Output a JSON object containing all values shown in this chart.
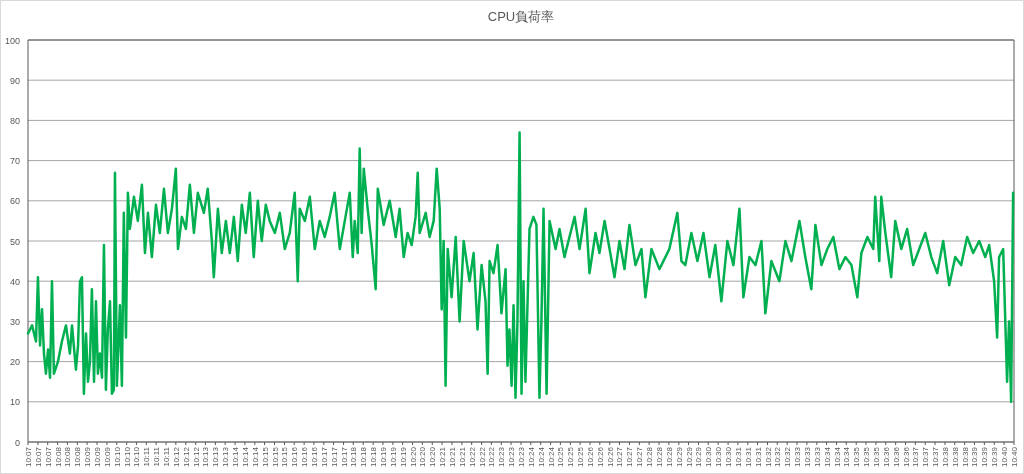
{
  "chart_data": {
    "type": "line",
    "title": "CPU負荷率",
    "grid": "y",
    "xlim": [
      10.1111,
      10.6667
    ],
    "ylim": [
      0,
      100
    ],
    "yticks": [
      0,
      10,
      20,
      30,
      40,
      50,
      60,
      70,
      80,
      90,
      100
    ],
    "xticks": [
      {
        "value": 10.1111,
        "label": "10:07"
      },
      {
        "value": 10.1167,
        "label": "10:07"
      },
      {
        "value": 10.1222,
        "label": "10:07"
      },
      {
        "value": 10.1278,
        "label": "10:08"
      },
      {
        "value": 10.1333,
        "label": "10:08"
      },
      {
        "value": 10.1389,
        "label": "10:08"
      },
      {
        "value": 10.1444,
        "label": "10:09"
      },
      {
        "value": 10.15,
        "label": "10:09"
      },
      {
        "value": 10.1556,
        "label": "10:09"
      },
      {
        "value": 10.1611,
        "label": "10:10"
      },
      {
        "value": 10.1667,
        "label": "10:10"
      },
      {
        "value": 10.1722,
        "label": "10:10"
      },
      {
        "value": 10.1778,
        "label": "10:11"
      },
      {
        "value": 10.1833,
        "label": "10:11"
      },
      {
        "value": 10.1889,
        "label": "10:11"
      },
      {
        "value": 10.1944,
        "label": "10:12"
      },
      {
        "value": 10.2,
        "label": "10:12"
      },
      {
        "value": 10.2056,
        "label": "10:12"
      },
      {
        "value": 10.2111,
        "label": "10:13"
      },
      {
        "value": 10.2167,
        "label": "10:13"
      },
      {
        "value": 10.2222,
        "label": "10:13"
      },
      {
        "value": 10.2278,
        "label": "10:14"
      },
      {
        "value": 10.2333,
        "label": "10:14"
      },
      {
        "value": 10.2389,
        "label": "10:14"
      },
      {
        "value": 10.2444,
        "label": "10:15"
      },
      {
        "value": 10.25,
        "label": "10:15"
      },
      {
        "value": 10.2556,
        "label": "10:15"
      },
      {
        "value": 10.2611,
        "label": "10:16"
      },
      {
        "value": 10.2667,
        "label": "10:16"
      },
      {
        "value": 10.2722,
        "label": "10:16"
      },
      {
        "value": 10.2778,
        "label": "10:17"
      },
      {
        "value": 10.2833,
        "label": "10:17"
      },
      {
        "value": 10.2889,
        "label": "10:17"
      },
      {
        "value": 10.2944,
        "label": "10:18"
      },
      {
        "value": 10.3,
        "label": "10:18"
      },
      {
        "value": 10.3056,
        "label": "10:18"
      },
      {
        "value": 10.3111,
        "label": "10:19"
      },
      {
        "value": 10.3167,
        "label": "10:19"
      },
      {
        "value": 10.3222,
        "label": "10:19"
      },
      {
        "value": 10.3278,
        "label": "10:20"
      },
      {
        "value": 10.3333,
        "label": "10:20"
      },
      {
        "value": 10.3389,
        "label": "10:20"
      },
      {
        "value": 10.3444,
        "label": "10:21"
      },
      {
        "value": 10.35,
        "label": "10:21"
      },
      {
        "value": 10.3556,
        "label": "10:21"
      },
      {
        "value": 10.3611,
        "label": "10:22"
      },
      {
        "value": 10.3667,
        "label": "10:22"
      },
      {
        "value": 10.3722,
        "label": "10:22"
      },
      {
        "value": 10.3778,
        "label": "10:23"
      },
      {
        "value": 10.3833,
        "label": "10:23"
      },
      {
        "value": 10.3889,
        "label": "10:23"
      },
      {
        "value": 10.3944,
        "label": "10:24"
      },
      {
        "value": 10.4,
        "label": "10:24"
      },
      {
        "value": 10.4056,
        "label": "10:24"
      },
      {
        "value": 10.4111,
        "label": "10:25"
      },
      {
        "value": 10.4167,
        "label": "10:25"
      },
      {
        "value": 10.4222,
        "label": "10:25"
      },
      {
        "value": 10.4278,
        "label": "10:26"
      },
      {
        "value": 10.4333,
        "label": "10:26"
      },
      {
        "value": 10.4389,
        "label": "10:26"
      },
      {
        "value": 10.4444,
        "label": "10:27"
      },
      {
        "value": 10.45,
        "label": "10:27"
      },
      {
        "value": 10.4556,
        "label": "10:27"
      },
      {
        "value": 10.4611,
        "label": "10:28"
      },
      {
        "value": 10.4667,
        "label": "10:28"
      },
      {
        "value": 10.4722,
        "label": "10:28"
      },
      {
        "value": 10.4778,
        "label": "10:29"
      },
      {
        "value": 10.4833,
        "label": "10:29"
      },
      {
        "value": 10.4889,
        "label": "10:29"
      },
      {
        "value": 10.4944,
        "label": "10:30"
      },
      {
        "value": 10.5,
        "label": "10:30"
      },
      {
        "value": 10.5056,
        "label": "10:30"
      },
      {
        "value": 10.5111,
        "label": "10:31"
      },
      {
        "value": 10.5167,
        "label": "10:31"
      },
      {
        "value": 10.5222,
        "label": "10:31"
      },
      {
        "value": 10.5278,
        "label": "10:32"
      },
      {
        "value": 10.5333,
        "label": "10:32"
      },
      {
        "value": 10.5389,
        "label": "10:32"
      },
      {
        "value": 10.5444,
        "label": "10:33"
      },
      {
        "value": 10.55,
        "label": "10:33"
      },
      {
        "value": 10.5556,
        "label": "10:33"
      },
      {
        "value": 10.5611,
        "label": "10:34"
      },
      {
        "value": 10.5667,
        "label": "10:34"
      },
      {
        "value": 10.5722,
        "label": "10:34"
      },
      {
        "value": 10.5778,
        "label": "10:35"
      },
      {
        "value": 10.5833,
        "label": "10:35"
      },
      {
        "value": 10.5889,
        "label": "10:35"
      },
      {
        "value": 10.5944,
        "label": "10:36"
      },
      {
        "value": 10.6,
        "label": "10:36"
      },
      {
        "value": 10.6056,
        "label": "10:36"
      },
      {
        "value": 10.6111,
        "label": "10:37"
      },
      {
        "value": 10.6167,
        "label": "10:37"
      },
      {
        "value": 10.6222,
        "label": "10:37"
      },
      {
        "value": 10.6278,
        "label": "10:38"
      },
      {
        "value": 10.6333,
        "label": "10:38"
      },
      {
        "value": 10.6389,
        "label": "10:38"
      },
      {
        "value": 10.6444,
        "label": "10:39"
      },
      {
        "value": 10.65,
        "label": "10:39"
      },
      {
        "value": 10.6556,
        "label": "10:39"
      },
      {
        "value": 10.6611,
        "label": "10:40"
      },
      {
        "value": 10.6667,
        "label": "10:40"
      }
    ],
    "x": [
      10.1111,
      10.1134,
      10.1156,
      10.1167,
      10.1179,
      10.119,
      10.1201,
      10.1212,
      10.1224,
      10.1235,
      10.1246,
      10.1257,
      10.128,
      10.1302,
      10.1325,
      10.1347,
      10.1359,
      10.1381,
      10.1393,
      10.1404,
      10.1415,
      10.1426,
      10.1438,
      10.1449,
      10.146,
      10.1471,
      10.1483,
      10.1494,
      10.1505,
      10.1516,
      10.1528,
      10.1539,
      10.155,
      10.1561,
      10.1573,
      10.1584,
      10.1595,
      10.1601,
      10.1612,
      10.1629,
      10.164,
      10.1651,
      10.1663,
      10.1674,
      10.1685,
      10.1708,
      10.173,
      10.1753,
      10.177,
      10.1787,
      10.1809,
      10.1832,
      10.1854,
      10.1877,
      10.1899,
      10.1922,
      10.1944,
      10.1956,
      10.1978,
      10.2001,
      10.2023,
      10.2046,
      10.2068,
      10.2102,
      10.2124,
      10.2147,
      10.2158,
      10.2181,
      10.2203,
      10.2226,
      10.2248,
      10.2271,
      10.2293,
      10.2316,
      10.2338,
      10.2361,
      10.2383,
      10.2406,
      10.2428,
      10.2451,
      10.2473,
      10.2502,
      10.253,
      10.2558,
      10.2586,
      10.2614,
      10.2631,
      10.2642,
      10.2671,
      10.2699,
      10.2727,
      10.2755,
      10.2783,
      10.2811,
      10.2839,
      10.2868,
      10.2896,
      10.2924,
      10.2941,
      10.2952,
      10.2969,
      10.298,
      10.2991,
      10.3003,
      10.3025,
      10.3048,
      10.307,
      10.3082,
      10.3115,
      10.3149,
      10.3183,
      10.3205,
      10.3228,
      10.325,
      10.3273,
      10.3295,
      10.3307,
      10.3318,
      10.3352,
      10.3374,
      10.3397,
      10.3414,
      10.3431,
      10.3442,
      10.3453,
      10.3464,
      10.3476,
      10.3498,
      10.3521,
      10.3543,
      10.3566,
      10.3599,
      10.3622,
      10.3644,
      10.3667,
      10.3689,
      10.3701,
      10.3712,
      10.3734,
      10.3757,
      10.3779,
      10.3802,
      10.3813,
      10.3824,
      10.3836,
      10.3847,
      10.3858,
      10.3869,
      10.3881,
      10.3892,
      10.3903,
      10.3914,
      10.3937,
      10.3959,
      10.3976,
      10.3993,
      10.4004,
      10.4016,
      10.4033,
      10.405,
      10.4084,
      10.4106,
      10.4134,
      10.4162,
      10.4191,
      10.4219,
      10.4253,
      10.4275,
      10.4309,
      10.4331,
      10.436,
      10.4388,
      10.4416,
      10.4444,
      10.4472,
      10.45,
      10.4534,
      10.4568,
      10.459,
      10.4624,
      10.4669,
      10.4725,
      10.477,
      10.4793,
      10.4815,
      10.4849,
      10.4883,
      10.4917,
      10.4951,
      10.4984,
      10.5018,
      10.5052,
      10.5086,
      10.512,
      10.5142,
      10.5176,
      10.521,
      10.5244,
      10.5266,
      10.53,
      10.5345,
      10.5379,
      10.5413,
      10.5458,
      10.5491,
      10.5525,
      10.5548,
      10.5582,
      10.5615,
      10.5649,
      10.5683,
      10.5717,
      10.5751,
      10.5784,
      10.5807,
      10.5841,
      10.5874,
      10.5885,
      10.5908,
      10.5919,
      10.5942,
      10.5975,
      10.5998,
      10.6032,
      10.6065,
      10.6099,
      10.6133,
      10.6167,
      10.6201,
      10.6234,
      10.6268,
      10.6302,
      10.6336,
      10.6369,
      10.6403,
      10.6437,
      10.6471,
      10.6505,
      10.6527,
      10.6555,
      10.6572,
      10.6583,
      10.6606,
      10.6628,
      10.6639,
      10.6651,
      10.6662
    ],
    "series": [
      {
        "color": "#00b050",
        "values": [
          27,
          29,
          25,
          41,
          24,
          33,
          22,
          17,
          23,
          16,
          40,
          17,
          20,
          25,
          29,
          22,
          29,
          18,
          24,
          40,
          41,
          12,
          27,
          15,
          20,
          38,
          15,
          35,
          17,
          22,
          16,
          49,
          13,
          28,
          35,
          12,
          13,
          67,
          14,
          34,
          14,
          57,
          26,
          62,
          53,
          61,
          55,
          64,
          47,
          57,
          46,
          59,
          52,
          63,
          52,
          58,
          68,
          48,
          56,
          53,
          64,
          52,
          62,
          57,
          63,
          50,
          41,
          58,
          47,
          55,
          47,
          56,
          45,
          59,
          52,
          62,
          46,
          60,
          50,
          59,
          55,
          52,
          57,
          48,
          52,
          62,
          40,
          58,
          55,
          61,
          48,
          55,
          51,
          56,
          62,
          48,
          55,
          62,
          46,
          55,
          47,
          73,
          52,
          68,
          58,
          49,
          38,
          63,
          54,
          60,
          51,
          58,
          46,
          52,
          49,
          56,
          67,
          52,
          57,
          51,
          55,
          68,
          58,
          33,
          50,
          14,
          48,
          36,
          51,
          30,
          50,
          40,
          47,
          28,
          44,
          35,
          17,
          45,
          42,
          49,
          32,
          43,
          19,
          28,
          14,
          34,
          11,
          30,
          77,
          12,
          40,
          15,
          53,
          56,
          54,
          11,
          30,
          58,
          12,
          55,
          48,
          53,
          46,
          51,
          56,
          48,
          58,
          42,
          52,
          47,
          55,
          48,
          41,
          50,
          43,
          54,
          44,
          48,
          36,
          48,
          43,
          48,
          57,
          45,
          44,
          52,
          45,
          52,
          41,
          49,
          35,
          50,
          44,
          58,
          36,
          46,
          44,
          50,
          32,
          45,
          40,
          50,
          45,
          55,
          46,
          38,
          54,
          44,
          48,
          51,
          43,
          46,
          44,
          36,
          47,
          51,
          48,
          61,
          45,
          61,
          52,
          41,
          55,
          48,
          53,
          44,
          48,
          52,
          46,
          42,
          50,
          39,
          46,
          44,
          51,
          47,
          50,
          46,
          49,
          40,
          26,
          46,
          48,
          15,
          30,
          10,
          62
        ]
      }
    ]
  }
}
